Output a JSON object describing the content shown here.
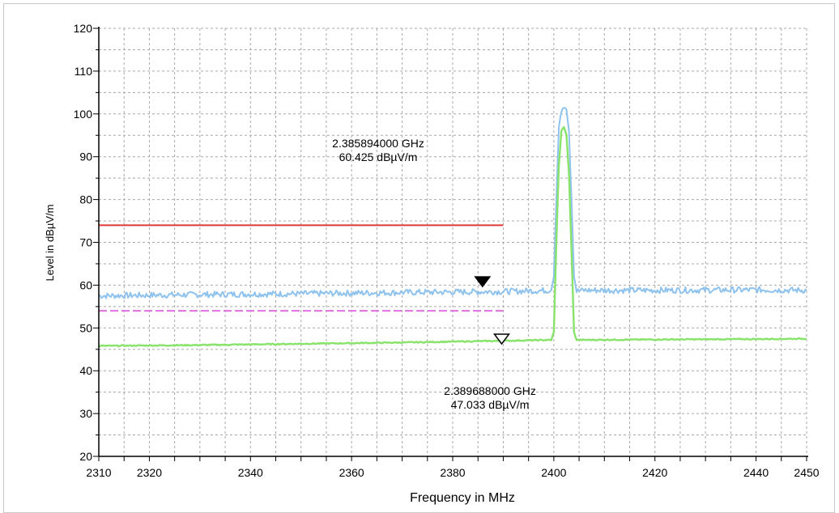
{
  "chart_data": {
    "type": "line",
    "xlabel": "Frequency in MHz",
    "ylabel": "Level in dBµV/m",
    "xlim": [
      2310,
      2450
    ],
    "ylim": [
      20,
      120
    ],
    "x_ticks": [
      2310,
      2320,
      2340,
      2360,
      2380,
      2400,
      2420,
      2440,
      2450
    ],
    "y_ticks": [
      20,
      30,
      40,
      50,
      60,
      70,
      80,
      90,
      100,
      110,
      120
    ],
    "grid": true,
    "series": [
      {
        "role": "peak-trace",
        "color": "#8fc3ee",
        "x": [
          2310,
          2330,
          2350,
          2370,
          2390,
          2399.5,
          2400,
          2400.5,
          2401,
          2401.5,
          2402,
          2402.5,
          2403,
          2403.5,
          2404,
          2404.5,
          2406,
          2420,
          2440,
          2450
        ],
        "y": [
          57.5,
          57.8,
          58.0,
          58.3,
          58.5,
          58.8,
          62,
          80,
          97,
          101,
          102,
          101,
          96,
          80,
          62,
          58.6,
          58.8,
          58.8,
          58.9,
          58.8
        ]
      },
      {
        "role": "average-trace",
        "color": "#88e36a",
        "x": [
          2310,
          2330,
          2350,
          2370,
          2390,
          2399.5,
          2400,
          2400.5,
          2401,
          2401.5,
          2402,
          2402.5,
          2403,
          2403.5,
          2404,
          2404.5,
          2406,
          2420,
          2440,
          2450
        ],
        "y": [
          45.8,
          46.0,
          46.3,
          46.6,
          47.0,
          47.2,
          49,
          70,
          88,
          96,
          97,
          95,
          86,
          68,
          49,
          47.2,
          47.2,
          47.3,
          47.4,
          47.5
        ]
      }
    ],
    "limit_lines": [
      {
        "role": "peak-limit",
        "color": "#e0383a",
        "y": 74,
        "x": [
          2310,
          2390
        ],
        "style": "solid"
      },
      {
        "role": "average-limit",
        "color": "#e070e0",
        "y": 54,
        "x": [
          2310,
          2390
        ],
        "style": "dashed"
      }
    ],
    "markers": [
      {
        "role": "peak-marker",
        "x": 2385.894,
        "y": 60.425,
        "filled": true,
        "label_freq": "2.385894000 GHz",
        "label_level": "60.425 dBµV/m"
      },
      {
        "role": "average-marker",
        "x": 2389.688,
        "y": 47.033,
        "filled": false,
        "label_freq": "2.389688000 GHz",
        "label_level": "47.033 dBµV/m"
      }
    ]
  }
}
